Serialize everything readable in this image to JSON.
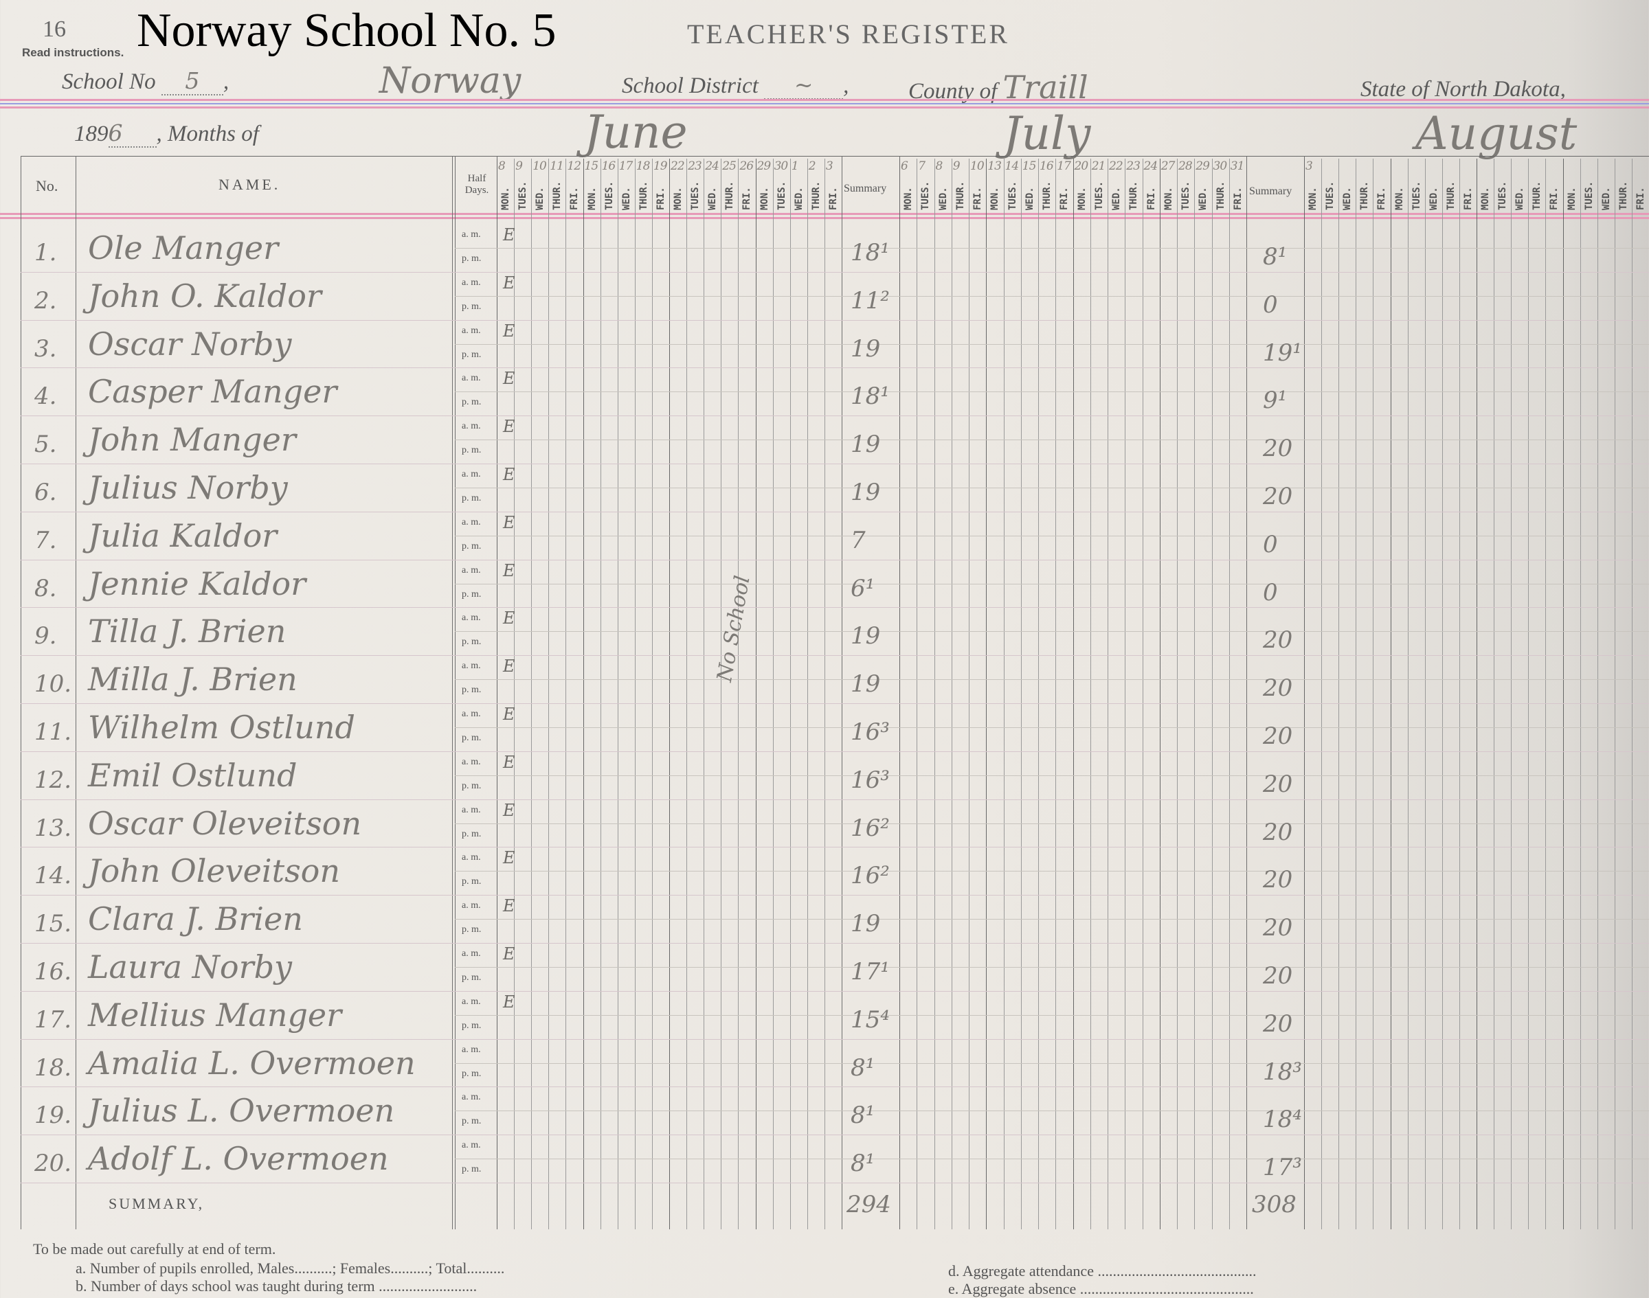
{
  "page_number": "16",
  "overlay_title": "Norway School No. 5",
  "register_title": "TEACHER'S REGISTER",
  "read_instructions": "Read instructions.",
  "header_line": {
    "school_no_label": "School No",
    "school_no_value": "5",
    "school_name_value": "Norway",
    "district_label": "School District",
    "district_value": "~",
    "county_label": "County of",
    "county_value": "Traill",
    "state_label": "State of North Dakota,"
  },
  "year_prefix": "189",
  "year_digit": "6",
  "months_label": "Months of",
  "months": [
    "June",
    "July",
    "August"
  ],
  "columns": {
    "no": "No.",
    "name": "NAME.",
    "half_days": "Half Days.",
    "summary": "Summary",
    "weekdays": [
      "MON.",
      "TUES.",
      "WED.",
      "THUR.",
      "FRI."
    ],
    "am": "a. m.",
    "pm": "p. m."
  },
  "june_dates": [
    "8",
    "9",
    "10",
    "11",
    "12",
    "15",
    "16",
    "17",
    "18",
    "19",
    "22",
    "23",
    "24",
    "25",
    "26",
    "29",
    "30",
    "1",
    "2",
    "3"
  ],
  "july_dates": [
    "6",
    "7",
    "8",
    "9",
    "10",
    "13",
    "14",
    "15",
    "16",
    "17",
    "20",
    "21",
    "22",
    "23",
    "24",
    "27",
    "28",
    "29",
    "30",
    "31"
  ],
  "august_dates": [
    "3"
  ],
  "students": [
    {
      "no": "1.",
      "name": "Ole Manger",
      "june_summary": "18¹",
      "july_summary": "8¹",
      "first_mark": "E"
    },
    {
      "no": "2.",
      "name": "John O. Kaldor",
      "june_summary": "11²",
      "july_summary": "0",
      "first_mark": "E"
    },
    {
      "no": "3.",
      "name": "Oscar Norby",
      "june_summary": "19",
      "july_summary": "19¹",
      "first_mark": "E"
    },
    {
      "no": "4.",
      "name": "Casper Manger",
      "june_summary": "18¹",
      "july_summary": "9¹",
      "first_mark": "E"
    },
    {
      "no": "5.",
      "name": "John Manger",
      "june_summary": "19",
      "july_summary": "20",
      "first_mark": "E"
    },
    {
      "no": "6.",
      "name": "Julius Norby",
      "june_summary": "19",
      "july_summary": "20",
      "first_mark": "E"
    },
    {
      "no": "7.",
      "name": "Julia Kaldor",
      "june_summary": "7",
      "july_summary": "0",
      "first_mark": "E"
    },
    {
      "no": "8.",
      "name": "Jennie Kaldor",
      "june_summary": "6¹",
      "july_summary": "0",
      "first_mark": "E"
    },
    {
      "no": "9.",
      "name": "Tilla J. Brien",
      "june_summary": "19",
      "july_summary": "20",
      "first_mark": "E"
    },
    {
      "no": "10.",
      "name": "Milla J. Brien",
      "june_summary": "19",
      "july_summary": "20",
      "first_mark": "E"
    },
    {
      "no": "11.",
      "name": "Wilhelm Ostlund",
      "june_summary": "16³",
      "july_summary": "20",
      "first_mark": "E"
    },
    {
      "no": "12.",
      "name": "Emil Ostlund",
      "june_summary": "16³",
      "july_summary": "20",
      "first_mark": "E"
    },
    {
      "no": "13.",
      "name": "Oscar Oleveitson",
      "june_summary": "16²",
      "july_summary": "20",
      "first_mark": "E"
    },
    {
      "no": "14.",
      "name": "John Oleveitson",
      "june_summary": "16²",
      "july_summary": "20",
      "first_mark": "E"
    },
    {
      "no": "15.",
      "name": "Clara J. Brien",
      "june_summary": "19",
      "july_summary": "20",
      "first_mark": "E"
    },
    {
      "no": "16.",
      "name": "Laura Norby",
      "june_summary": "17¹",
      "july_summary": "20",
      "first_mark": "E"
    },
    {
      "no": "17.",
      "name": "Mellius Manger",
      "june_summary": "15⁴",
      "july_summary": "20",
      "first_mark": "E"
    },
    {
      "no": "18.",
      "name": "Amalia L. Overmoen",
      "june_summary": "8¹",
      "july_summary": "18³",
      "first_mark": ""
    },
    {
      "no": "19.",
      "name": "Julius L. Overmoen",
      "june_summary": "8¹",
      "july_summary": "18⁴",
      "first_mark": ""
    },
    {
      "no": "20.",
      "name": "Adolf L. Overmoen",
      "june_summary": "8¹",
      "july_summary": "17³",
      "first_mark": ""
    }
  ],
  "no_school_note": "No School",
  "summary_label": "SUMMARY,",
  "june_total": "294",
  "july_total": "308",
  "footer": {
    "intro": "To be made out carefully at end of term.",
    "a": "a.   Number of pupils enrolled, Males..........; Females..........; Total..........",
    "b": "b.   Number of days school was taught during term ..........................",
    "d": "d.   Aggregate attendance ..........................................",
    "e": "e.   Aggregate absence .............................................."
  },
  "colors": {
    "pink_rule": "#e79ab8",
    "blue_rule": "#9a9ee0",
    "paper": "#ebe7e1",
    "ink": "#7d7a76"
  }
}
